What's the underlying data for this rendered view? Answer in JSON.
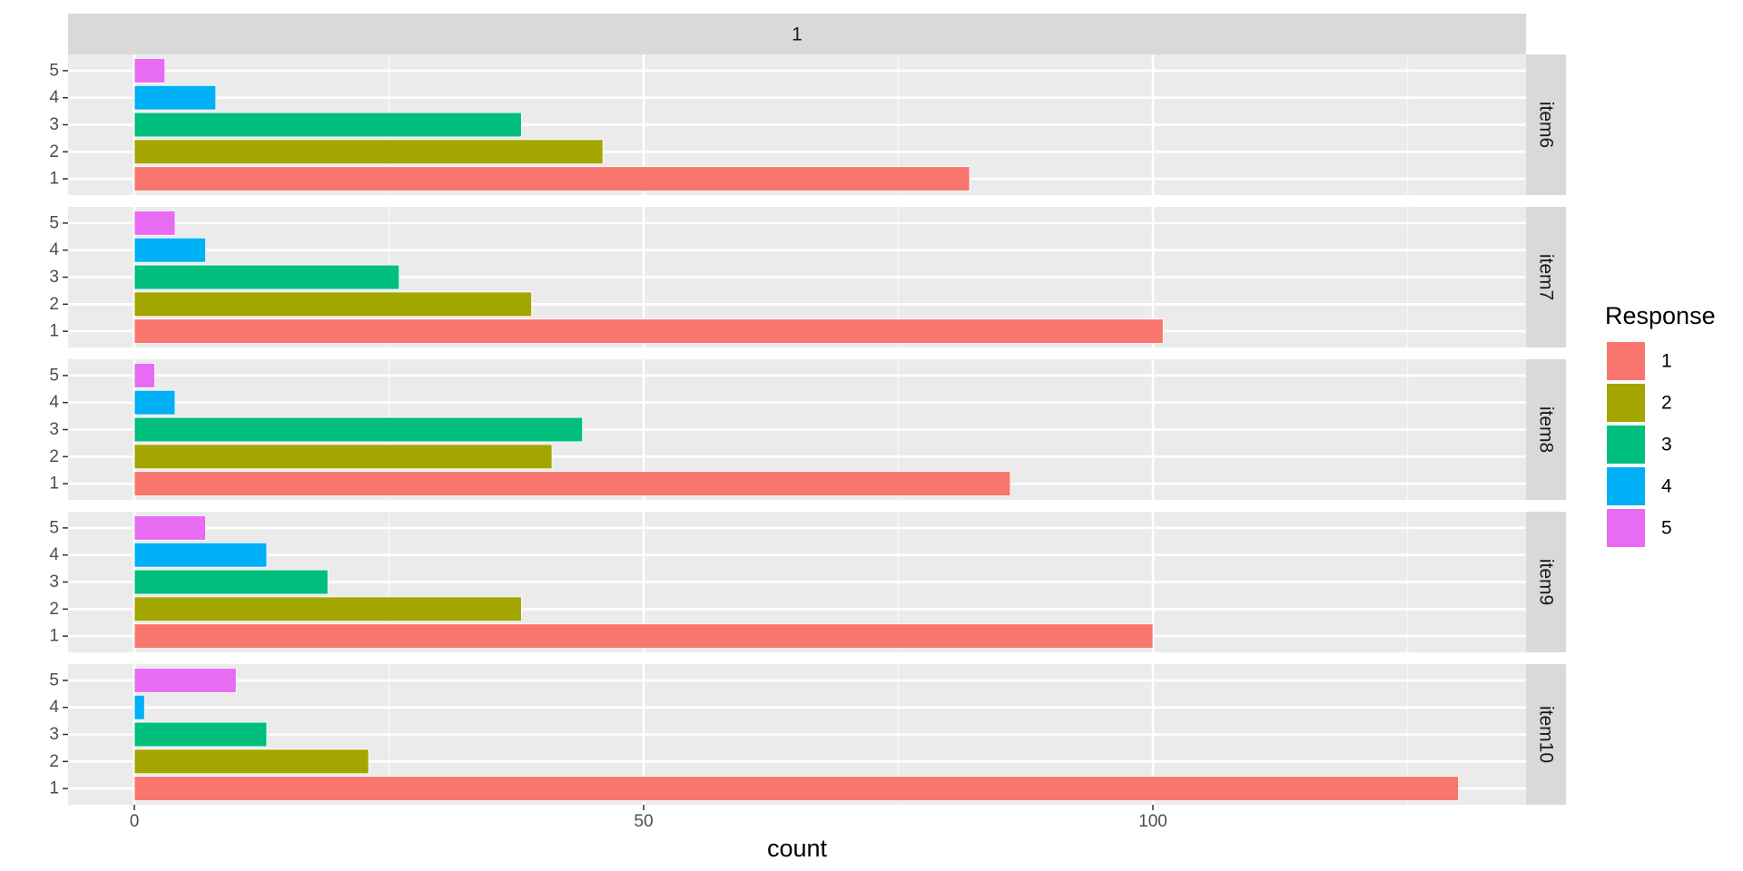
{
  "chart_data": {
    "type": "bar",
    "orientation": "horizontal",
    "column_strip": "1",
    "xlabel": "count",
    "ylabel": "",
    "xlim": [
      -6.5,
      136.5
    ],
    "x_ticks": [
      0,
      50,
      100
    ],
    "x_minor_ticks": [
      25,
      75,
      125
    ],
    "categories": [
      "1",
      "2",
      "3",
      "4",
      "5"
    ],
    "grid": true,
    "legend": {
      "title": "Response",
      "position": "right",
      "entries": [
        "1",
        "2",
        "3",
        "4",
        "5"
      ]
    },
    "colors": {
      "1": "#F8766D",
      "2": "#A3A500",
      "3": "#00BF7D",
      "4": "#00B0F6",
      "5": "#E76BF3"
    },
    "panels": [
      {
        "name": "item6",
        "values": [
          82,
          46,
          38,
          8,
          3
        ]
      },
      {
        "name": "item7",
        "values": [
          101,
          39,
          26,
          7,
          4
        ]
      },
      {
        "name": "item8",
        "values": [
          86,
          41,
          44,
          4,
          2
        ]
      },
      {
        "name": "item9",
        "values": [
          100,
          38,
          19,
          13,
          7
        ]
      },
      {
        "name": "item10",
        "values": [
          130,
          23,
          13,
          1,
          10
        ]
      }
    ]
  }
}
